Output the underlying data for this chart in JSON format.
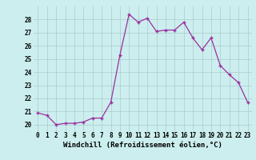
{
  "hours": [
    0,
    1,
    2,
    3,
    4,
    5,
    6,
    7,
    8,
    9,
    10,
    11,
    12,
    13,
    14,
    15,
    16,
    17,
    18,
    19,
    20,
    21,
    22,
    23
  ],
  "values": [
    20.9,
    20.7,
    20.0,
    20.1,
    20.1,
    20.2,
    20.5,
    20.5,
    21.7,
    25.3,
    28.4,
    27.8,
    28.1,
    27.1,
    27.2,
    27.2,
    27.8,
    26.6,
    25.7,
    26.6,
    24.5,
    23.8,
    23.2,
    21.7
  ],
  "line_color": "#9b30a0",
  "marker": "+",
  "bg_color": "#cceeee",
  "grid_color": "#aacccc",
  "xlabel": "Windchill (Refroidissement éolien,°C)",
  "ylim": [
    19.5,
    29.0
  ],
  "xlim": [
    -0.5,
    23.5
  ],
  "yticks": [
    20,
    21,
    22,
    23,
    24,
    25,
    26,
    27,
    28
  ],
  "xtick_labels": [
    "0",
    "1",
    "2",
    "3",
    "4",
    "5",
    "6",
    "7",
    "8",
    "9",
    "10",
    "11",
    "12",
    "13",
    "14",
    "15",
    "16",
    "17",
    "18",
    "19",
    "20",
    "21",
    "22",
    "23"
  ],
  "tick_fontsize": 5.5,
  "xlabel_fontsize": 6.5
}
